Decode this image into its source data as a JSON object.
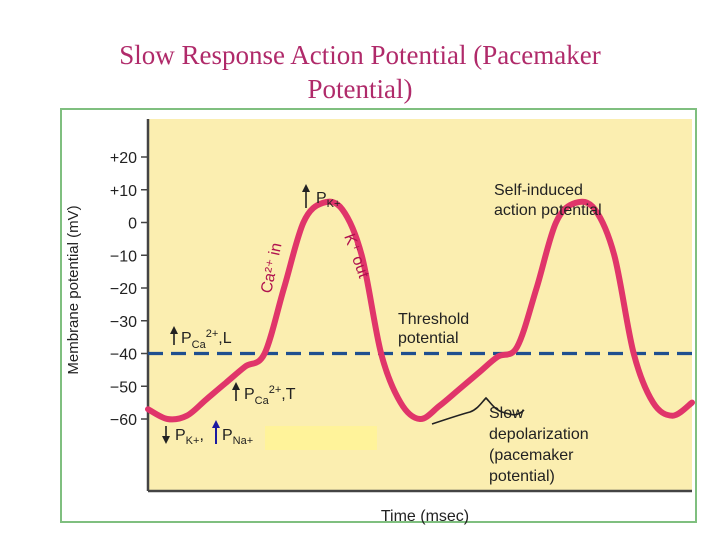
{
  "slide": {
    "title_line1": "Slow Response Action Potential (Pacemaker",
    "title_line2": "Potential)"
  },
  "colors": {
    "title": "#b02a6a",
    "panel_border": "#7fbf7f",
    "plot_background": "#fbeeb0",
    "trace": "#e0356a",
    "threshold": "#1f4f8f",
    "highlight_box": "#fff39a"
  },
  "chart_data": {
    "type": "line",
    "title": "",
    "xlabel": "Time (msec)",
    "ylabel": "Membrane potential (mV)",
    "ylim": [
      -60,
      20
    ],
    "yticks": [
      20,
      10,
      0,
      -10,
      -20,
      -30,
      -40,
      -50,
      -60
    ],
    "ytick_labels": [
      "+20",
      "+10",
      "0",
      "−10",
      "−20",
      "−30",
      "−40",
      "−50",
      "−60"
    ],
    "xticks_shown": false,
    "grid": false,
    "threshold": {
      "value": -40,
      "label_line1": "Threshold",
      "label_line2": "potential"
    },
    "series": [
      {
        "values_mV": [
          -57,
          -60,
          -59,
          -54,
          -49,
          -44,
          -40,
          -20,
          0,
          6,
          4,
          -10,
          -40,
          -55,
          -60,
          -56,
          -51,
          -46,
          -41,
          -38,
          -20,
          0,
          6,
          4,
          -10,
          -40,
          -55,
          -59,
          -55
        ]
      }
    ],
    "annotations": {
      "pk_up": {
        "label": "P",
        "sub": "K+"
      },
      "ca_in": "Ca²⁺ in",
      "k_out": "K⁺ out",
      "pca_l": {
        "label": "P",
        "sub": "Ca",
        "sup": "2+",
        "suffix": ",L"
      },
      "pca_t": {
        "label": "P",
        "sub": "Ca",
        "sup": "2+",
        "suffix": ",T"
      },
      "pk_pna": {
        "label1": "P",
        "sub1": "K+",
        "label2": "P",
        "sub2": "Na+"
      },
      "self_induced_line1": "Self-induced",
      "self_induced_line2": "action potential",
      "slow_depol_line1": "Slow",
      "slow_depol_line2": "depolarization",
      "slow_depol_line3": "(pacemaker",
      "slow_depol_line4": "potential)"
    }
  }
}
